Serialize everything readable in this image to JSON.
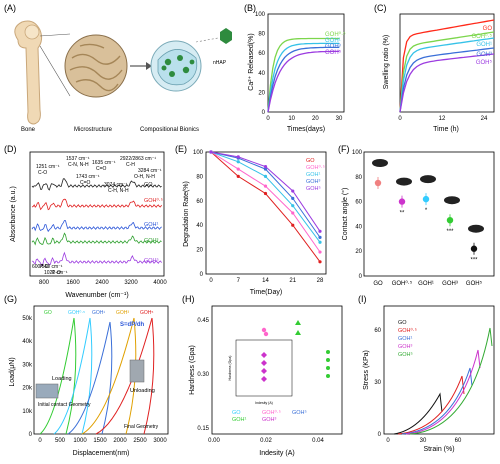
{
  "panels": {
    "A": {
      "letter": "(A)",
      "labels": [
        "Bone",
        "Microstructure",
        "Compositional Bionics",
        "nHAP"
      ]
    },
    "B": {
      "letter": "(B)",
      "ylabel": "Ca²⁺ Released(%)",
      "xlabel": "Times(days)",
      "xticks": [
        "0",
        "10",
        "20",
        "30"
      ],
      "yticks": [
        "0",
        "20",
        "40",
        "60",
        "80",
        "100"
      ],
      "legend": [
        "GOH⁰·⁵",
        "GOH¹",
        "GOH³",
        "GOH⁵"
      ],
      "colors": [
        "#7cd64c",
        "#36c2e8",
        "#3a6fd8",
        "#9c3ce0"
      ],
      "plateaus": [
        75,
        70,
        66,
        62
      ]
    },
    "C": {
      "letter": "(C)",
      "ylabel": "Swelling ratio (%)",
      "xlabel": "Time (h)",
      "xticks": [
        "0",
        "12",
        "24"
      ],
      "legend": [
        "GO",
        "GOH⁰·⁵",
        "GOH¹",
        "GOH³",
        "GOH⁵"
      ],
      "colors": [
        "#ff2a1a",
        "#7cd64c",
        "#36c2e8",
        "#3a6fd8",
        "#9c3ce0"
      ]
    },
    "D": {
      "letter": "(D)",
      "ylabel": "Absorbance (a.u.)",
      "xlabel": "Wavenumber (cm⁻¹)",
      "xticks": [
        "800",
        "1600",
        "2400",
        "3200",
        "4000"
      ],
      "annotations": [
        "1251 cm⁻¹",
        "C-O",
        "1537 cm⁻¹",
        "C-N, N-H",
        "1635 cm⁻¹",
        "C=O",
        "2922/2863 cm⁻¹",
        "C-H",
        "1743 cm⁻¹",
        "C=O",
        "3284 cm⁻¹",
        "O-H, N-H",
        "3074 cm⁻¹",
        "C-H, N-H",
        "600/560 cm⁻¹",
        "P-O",
        "1021 cm⁻¹",
        "P-O"
      ],
      "series": [
        "GO",
        "GOH⁰·⁵",
        "GOH¹",
        "GOH³",
        "GOH⁵"
      ],
      "colors": [
        "#222222",
        "#e02020",
        "#2a55d8",
        "#2ea02e",
        "#9c3ce0"
      ]
    },
    "E": {
      "letter": "(E)",
      "ylabel": "Degradation Rate(%)",
      "xlabel": "Time(Day)",
      "xticks": [
        "0",
        "7",
        "14",
        "21",
        "28"
      ],
      "yticks": [
        "0",
        "20",
        "40",
        "60",
        "80",
        "100"
      ],
      "legend": [
        "GO",
        "GOH⁰·⁵",
        "GOH¹",
        "GOH³",
        "GOH⁵"
      ],
      "colors": [
        "#e02020",
        "#ff66cc",
        "#36c2e8",
        "#3a6fd8",
        "#9c3ce0"
      ]
    },
    "F": {
      "letter": "(F)",
      "ylabel": "Contact angle (°)",
      "categories": [
        "GO",
        "GOH⁰·⁵",
        "GOH¹",
        "GOH³",
        "GOH⁵"
      ],
      "yticks": [
        "0",
        "20",
        "40",
        "60",
        "80",
        "100"
      ],
      "sig": [
        "",
        "**",
        "*",
        "***",
        "***"
      ],
      "colors": [
        "#f08080",
        "#cc33cc",
        "#33ccff",
        "#33cc33",
        "#111111"
      ]
    },
    "G": {
      "letter": "(G)",
      "ylabel": "Load(μN)",
      "xlabel": "Displacement(nm)",
      "xticks": [
        "0",
        "500",
        "1000",
        "1500",
        "2000",
        "2500",
        "3000"
      ],
      "yticks": [
        "0",
        "10k",
        "20k",
        "30k",
        "40k",
        "50k"
      ],
      "legend": [
        "GO",
        "GOH⁰·⁵",
        "GOH¹",
        "GOH³",
        "GOH⁵"
      ],
      "colors": [
        "#33cc33",
        "#33ccff",
        "#3a6fd8",
        "#e0a000",
        "#e02020"
      ],
      "labels": [
        "S=dP/dh",
        "Loading",
        "Unloading",
        "Initial contact Geometry",
        "Final Geometry"
      ]
    },
    "H": {
      "letter": "(H)",
      "ylabel": "Hardness (Gpa)",
      "xlabel": "Indesity (A)",
      "xticks": [
        "0.00",
        "0.02",
        "0.04"
      ],
      "yticks": [
        "0.15",
        "0.30",
        "0.45"
      ],
      "legend": [
        "GO",
        "GOH⁰·⁵",
        "GOH¹",
        "GOH³",
        "GOH⁵"
      ],
      "colors": [
        "#33ccff",
        "#ff66cc",
        "#33cc33",
        "#cc33cc",
        "#3a6fd8"
      ],
      "inset_ylabel": "Hardness (Gpa)",
      "inset_xlabel": "Indesity (A)"
    },
    "I": {
      "letter": "(I)",
      "ylabel": "Stress (KPa)",
      "xlabel": "Strain (%)",
      "xticks": [
        "0",
        "30",
        "60"
      ],
      "yticks": [
        "0",
        "30",
        "60"
      ],
      "legend": [
        "GO",
        "GOH⁰·⁵",
        "GOH¹",
        "GOH³",
        "GOH⁵"
      ],
      "colors": [
        "#111111",
        "#e02020",
        "#3a6fd8",
        "#cc33cc",
        "#33aa33"
      ]
    }
  }
}
